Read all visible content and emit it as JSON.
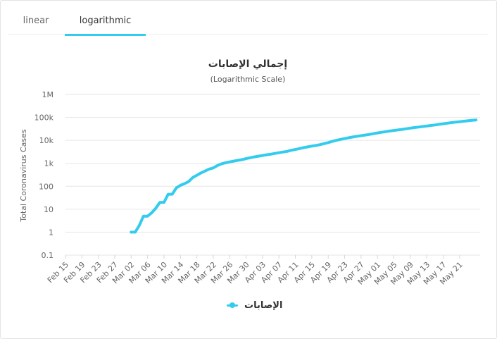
{
  "tabs": [
    {
      "label": "linear",
      "active": false
    },
    {
      "label": "logarithmic",
      "active": true
    }
  ],
  "colors": {
    "series": "#33ccee",
    "accent": "#33ccee",
    "grid": "#e6e6e6"
  },
  "chart_data": {
    "type": "line",
    "title": "إجمالي الإصابات",
    "subtitle": "(Logarithmic Scale)",
    "xlabel": "",
    "ylabel": "Total Coronavirus Cases",
    "y_scale": "log",
    "ylim": [
      0.1,
      1000000
    ],
    "y_ticks": [
      "0.1",
      "1",
      "10",
      "100",
      "1k",
      "10k",
      "100k",
      "1M"
    ],
    "x_range": [
      "2020-02-15",
      "2020-05-26"
    ],
    "x_ticks": [
      "Feb 15",
      "Feb 19",
      "Feb 23",
      "Feb 27",
      "Mar 02",
      "Mar 06",
      "Mar 10",
      "Mar 14",
      "Mar 18",
      "Mar 22",
      "Mar 26",
      "Mar 30",
      "Apr 03",
      "Apr 07",
      "Apr 11",
      "Apr 15",
      "Apr 19",
      "Apr 23",
      "Apr 27",
      "May 01",
      "May 05",
      "May 09",
      "May 13",
      "May 17",
      "May 21"
    ],
    "grid": true,
    "legend_position": "bottom-center",
    "series": [
      {
        "name": "الإصابات",
        "points": [
          [
            "2020-03-02",
            1
          ],
          [
            "2020-03-03",
            1
          ],
          [
            "2020-03-04",
            2
          ],
          [
            "2020-03-05",
            5
          ],
          [
            "2020-03-06",
            5
          ],
          [
            "2020-03-07",
            7
          ],
          [
            "2020-03-08",
            11
          ],
          [
            "2020-03-09",
            20
          ],
          [
            "2020-03-10",
            20
          ],
          [
            "2020-03-11",
            45
          ],
          [
            "2020-03-12",
            45
          ],
          [
            "2020-03-13",
            85
          ],
          [
            "2020-03-14",
            110
          ],
          [
            "2020-03-15",
            130
          ],
          [
            "2020-03-16",
            160
          ],
          [
            "2020-03-17",
            240
          ],
          [
            "2020-03-18",
            300
          ],
          [
            "2020-03-19",
            380
          ],
          [
            "2020-03-20",
            460
          ],
          [
            "2020-03-21",
            560
          ],
          [
            "2020-03-22",
            630
          ],
          [
            "2020-03-23",
            800
          ],
          [
            "2020-03-24",
            950
          ],
          [
            "2020-03-25",
            1050
          ],
          [
            "2020-03-26",
            1150
          ],
          [
            "2020-03-27",
            1250
          ],
          [
            "2020-03-28",
            1350
          ],
          [
            "2020-03-29",
            1450
          ],
          [
            "2020-03-30",
            1600
          ],
          [
            "2020-03-31",
            1750
          ],
          [
            "2020-04-01",
            1900
          ],
          [
            "2020-04-02",
            2050
          ],
          [
            "2020-04-03",
            2200
          ],
          [
            "2020-04-04",
            2350
          ],
          [
            "2020-04-05",
            2500
          ],
          [
            "2020-04-06",
            2700
          ],
          [
            "2020-04-07",
            2900
          ],
          [
            "2020-04-08",
            3100
          ],
          [
            "2020-04-09",
            3300
          ],
          [
            "2020-04-10",
            3700
          ],
          [
            "2020-04-11",
            4000
          ],
          [
            "2020-04-12",
            4400
          ],
          [
            "2020-04-13",
            4800
          ],
          [
            "2020-04-14",
            5200
          ],
          [
            "2020-04-15",
            5600
          ],
          [
            "2020-04-16",
            6000
          ],
          [
            "2020-04-17",
            6500
          ],
          [
            "2020-04-18",
            7200
          ],
          [
            "2020-04-19",
            8000
          ],
          [
            "2020-04-20",
            9000
          ],
          [
            "2020-04-21",
            10000
          ],
          [
            "2020-04-22",
            11000
          ],
          [
            "2020-04-23",
            12000
          ],
          [
            "2020-04-24",
            13000
          ],
          [
            "2020-04-25",
            14000
          ],
          [
            "2020-04-26",
            15000
          ],
          [
            "2020-04-27",
            16000
          ],
          [
            "2020-04-28",
            17000
          ],
          [
            "2020-04-29",
            18000
          ],
          [
            "2020-04-30",
            19500
          ],
          [
            "2020-05-01",
            21000
          ],
          [
            "2020-05-02",
            22500
          ],
          [
            "2020-05-03",
            24000
          ],
          [
            "2020-05-04",
            25500
          ],
          [
            "2020-05-05",
            27000
          ],
          [
            "2020-05-06",
            28500
          ],
          [
            "2020-05-07",
            30000
          ],
          [
            "2020-05-08",
            32000
          ],
          [
            "2020-05-09",
            34000
          ],
          [
            "2020-05-10",
            36000
          ],
          [
            "2020-05-11",
            38000
          ],
          [
            "2020-05-12",
            40000
          ],
          [
            "2020-05-13",
            42000
          ],
          [
            "2020-05-14",
            44500
          ],
          [
            "2020-05-15",
            47000
          ],
          [
            "2020-05-16",
            50000
          ],
          [
            "2020-05-17",
            53000
          ],
          [
            "2020-05-18",
            56000
          ],
          [
            "2020-05-19",
            59000
          ],
          [
            "2020-05-20",
            62000
          ],
          [
            "2020-05-21",
            65000
          ],
          [
            "2020-05-22",
            68000
          ],
          [
            "2020-05-23",
            71000
          ],
          [
            "2020-05-24",
            74000
          ],
          [
            "2020-05-25",
            77000
          ]
        ]
      }
    ]
  }
}
